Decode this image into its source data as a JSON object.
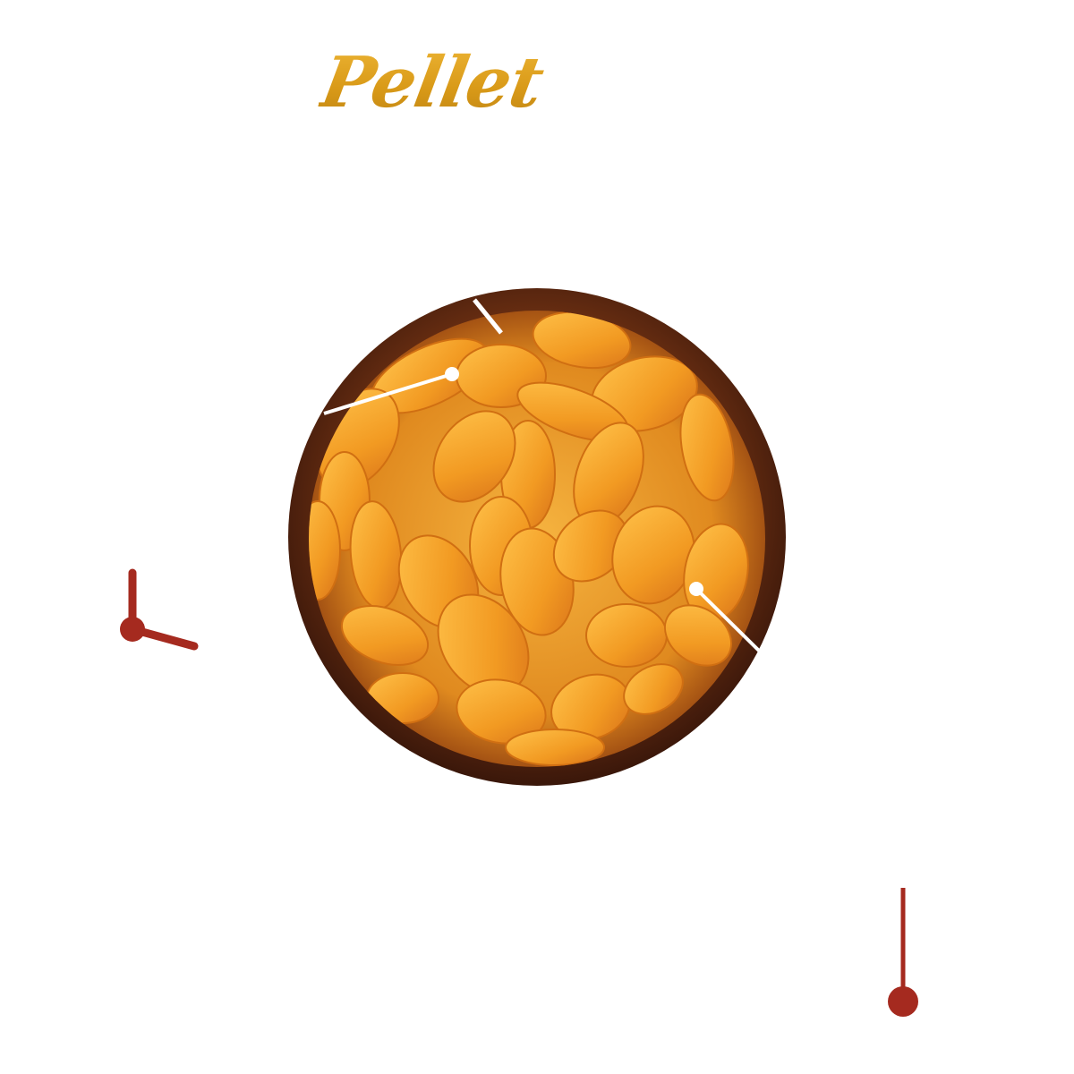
{
  "title": "Pellet",
  "colors": {
    "title": "#d99a18",
    "accent": "#a52a1f",
    "bowl": "#6b2f12",
    "pellet": "#f2a22a",
    "callout": "#ffffff"
  },
  "image": {
    "subject": "wooden-bowl-of-orange-shell-pellets"
  }
}
